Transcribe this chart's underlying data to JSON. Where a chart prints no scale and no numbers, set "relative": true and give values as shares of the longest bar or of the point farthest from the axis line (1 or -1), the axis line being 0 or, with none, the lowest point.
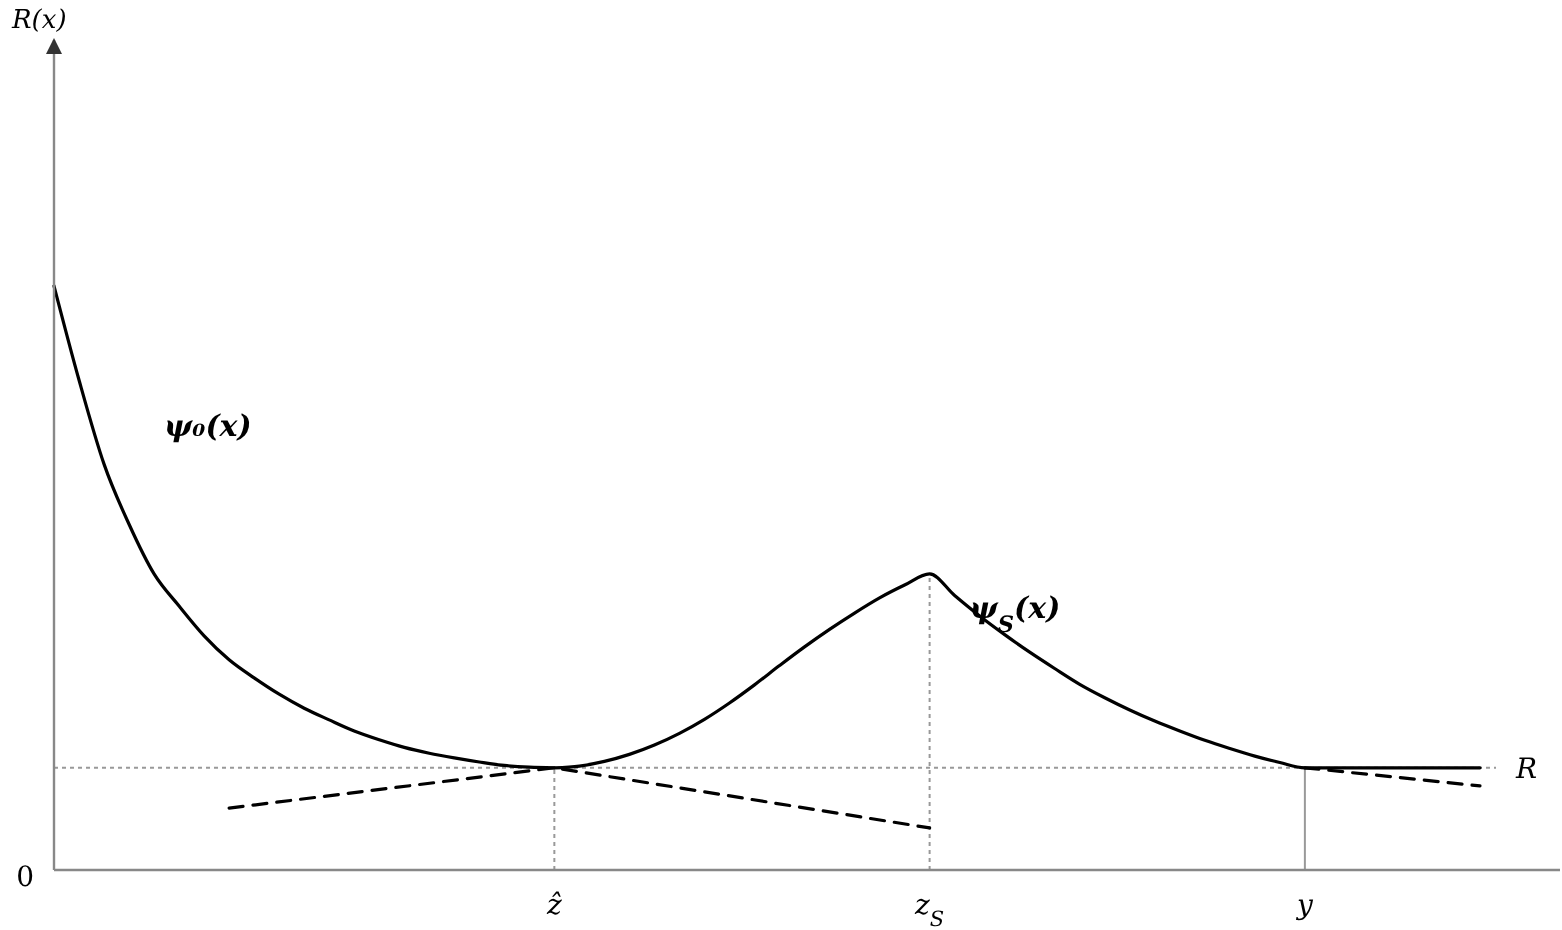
{
  "chart_data": {
    "type": "line",
    "relative": true,
    "annotations": [
      "R(x)",
      "0"
    ],
    "categories": [
      null,
      null,
      null,
      null,
      null,
      null,
      null,
      null,
      null,
      null,
      null,
      null,
      null,
      null,
      null,
      null,
      null,
      null,
      null,
      null,
      "ẑ",
      null,
      null,
      null,
      null,
      null,
      null,
      null,
      null,
      null,
      null,
      null,
      null,
      null,
      null,
      "z$_{S}$",
      null,
      null,
      null,
      null,
      null,
      null,
      null,
      null,
      null,
      null,
      null,
      null,
      null,
      null,
      "y",
      null,
      null,
      null,
      null,
      null,
      null,
      null
    ],
    "series": [
      {
        "name": "ψ₀(x)",
        "color": "#000000",
        "line_style": "solid",
        "values": [
          1.0,
          0.839,
          0.695,
          0.592,
          0.507,
          0.452,
          0.401,
          0.36,
          0.329,
          0.301,
          0.277,
          0.257,
          0.238,
          0.223,
          0.21,
          0.2,
          0.192,
          0.185,
          0.179,
          0.176,
          0.175,
          null,
          null,
          null,
          null,
          null,
          null,
          null,
          null,
          null,
          null,
          null,
          null,
          null,
          null,
          null,
          null,
          null,
          null,
          null,
          null,
          null,
          null,
          null,
          null,
          null,
          null,
          null,
          null,
          null,
          null,
          null,
          null,
          null,
          null,
          null,
          null,
          null
        ]
      },
      {
        "name": "ψ$_{S}$(x)",
        "color": "#000000",
        "line_style": "solid",
        "values": [
          null,
          null,
          null,
          null,
          null,
          null,
          null,
          null,
          null,
          null,
          null,
          null,
          null,
          null,
          null,
          null,
          null,
          null,
          null,
          null,
          0.175,
          0.178,
          0.186,
          0.198,
          0.214,
          0.234,
          0.258,
          0.286,
          0.317,
          0.35,
          0.382,
          0.412,
          0.44,
          0.466,
          0.488,
          0.507,
          0.47,
          0.435,
          0.403,
          0.373,
          0.345,
          0.318,
          0.295,
          0.274,
          0.255,
          0.238,
          0.222,
          0.208,
          0.195,
          0.184,
          0.175,
          0.175,
          0.175,
          0.175,
          0.175,
          0.175,
          0.175,
          0.175
        ]
      },
      {
        "color": "#000000",
        "line_style": "dashed",
        "values": [
          null,
          null,
          null,
          null,
          null,
          null,
          null,
          0.106,
          null,
          null,
          null,
          null,
          null,
          null,
          null,
          null,
          null,
          null,
          null,
          null,
          0.175,
          null,
          null,
          null,
          null,
          null,
          null,
          null,
          null,
          null,
          null,
          null,
          null,
          null,
          null,
          0.072,
          null,
          null,
          null,
          null,
          null,
          null,
          null,
          null,
          null,
          null,
          null,
          null,
          null,
          null,
          null,
          null,
          null,
          null,
          null,
          null,
          null,
          null
        ]
      },
      {
        "color": "#000000",
        "line_style": "dashed",
        "values": [
          null,
          null,
          null,
          null,
          null,
          null,
          null,
          null,
          null,
          null,
          null,
          null,
          null,
          null,
          null,
          null,
          null,
          null,
          null,
          null,
          null,
          null,
          null,
          null,
          null,
          null,
          null,
          null,
          null,
          null,
          null,
          null,
          null,
          null,
          null,
          null,
          null,
          null,
          null,
          null,
          null,
          null,
          null,
          null,
          null,
          null,
          null,
          null,
          null,
          null,
          0.175,
          null,
          null,
          null,
          null,
          null,
          null,
          0.144
        ]
      }
    ],
    "ref_lines": [
      {
        "axis": "y",
        "value": 0.175,
        "label": "R",
        "color": "#999999",
        "line_style": "dotted"
      },
      {
        "axis": "x",
        "value": "ẑ",
        "color": "#999999",
        "line_style": "dotted"
      },
      {
        "axis": "x",
        "value": "z$_{S}$",
        "color": "#999999",
        "line_style": "dotted"
      },
      {
        "axis": "x",
        "value": "y",
        "color": "#999999",
        "line_style": "solid"
      }
    ]
  }
}
